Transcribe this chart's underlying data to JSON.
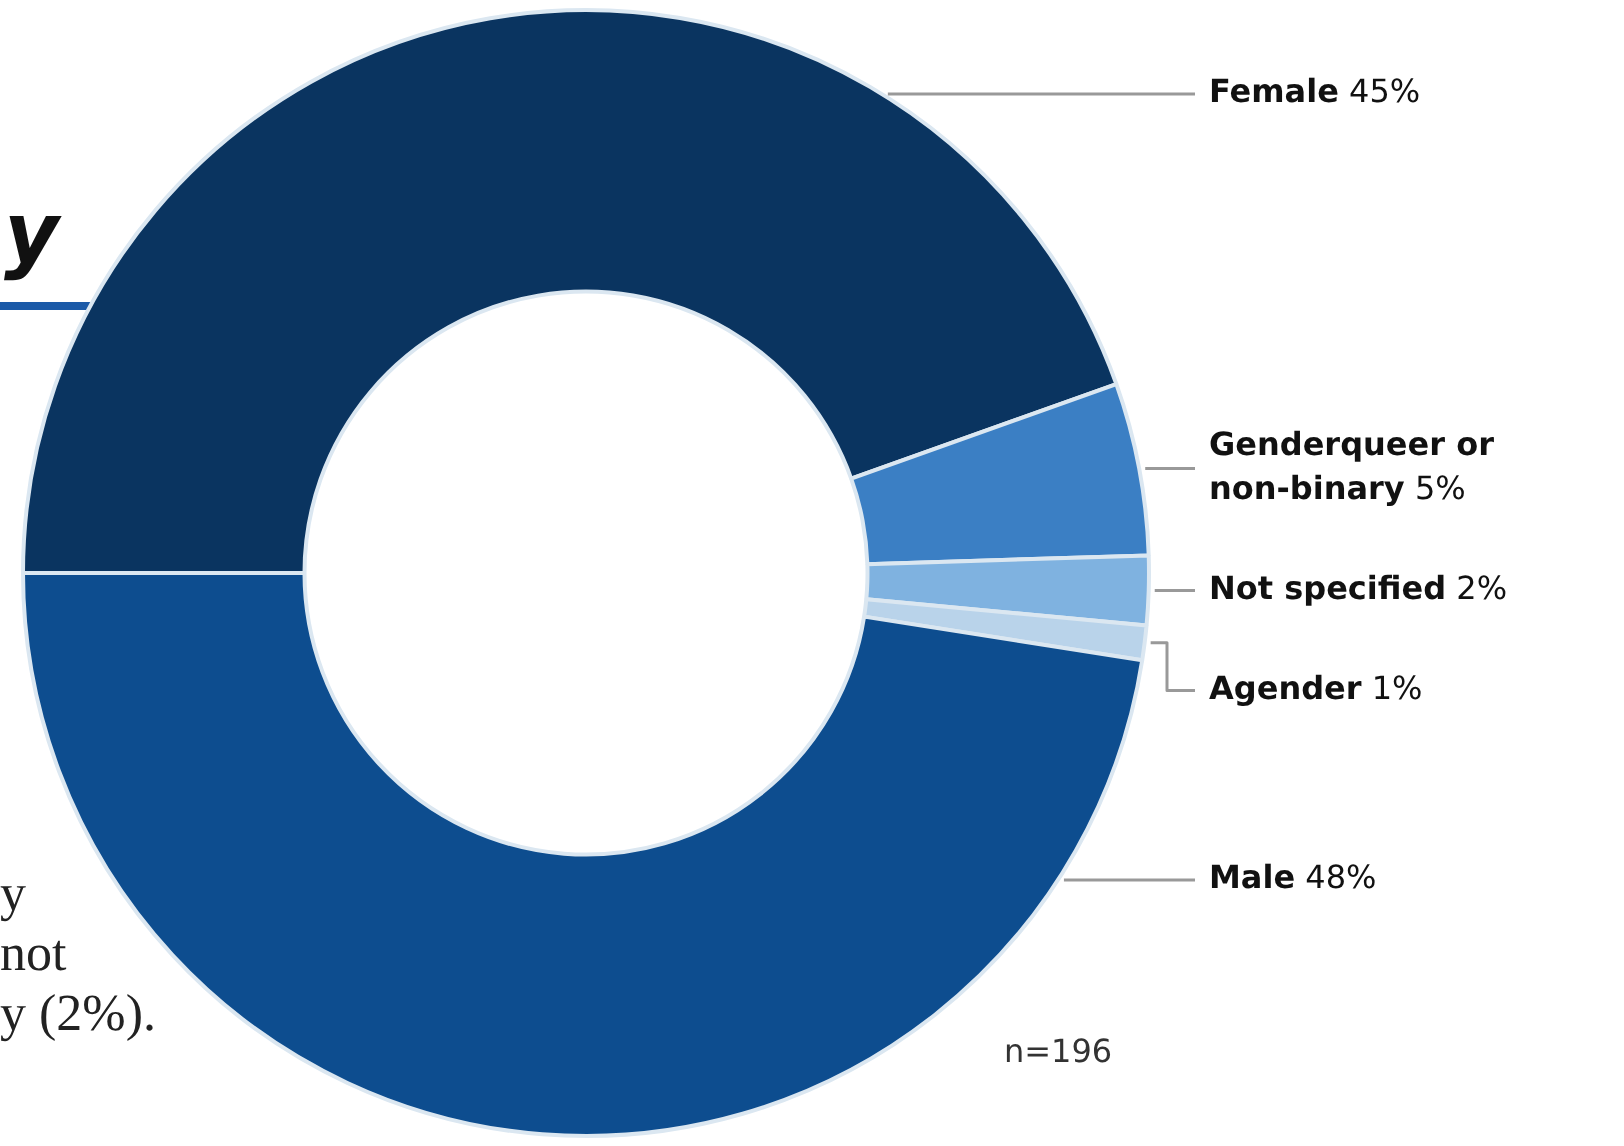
{
  "chart_data": {
    "type": "donut",
    "title": "y",
    "categories": [
      "Female",
      "Genderqueer or non-binary",
      "Not specified",
      "Agender",
      "Male"
    ],
    "values": [
      45,
      5,
      2,
      1,
      48
    ],
    "value_labels": [
      "45%",
      "5%",
      "2%",
      "1%",
      "48%"
    ],
    "colors": [
      "#0a3460",
      "#3b7fc4",
      "#7fb2e0",
      "#b9d3ea",
      "#0d4d8f"
    ],
    "annotations": [
      "y",
      "not",
      "y (2%).",
      "n=196"
    ],
    "legend": false
  }
}
